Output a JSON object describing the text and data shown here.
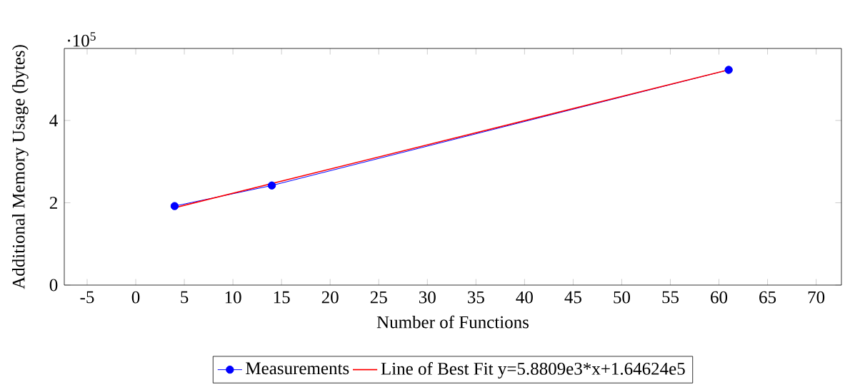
{
  "chart_data": {
    "type": "line",
    "xlabel": "Number of Functions",
    "ylabel": "Additional Memory Usage (bytes)",
    "annotations": [
      "·10$^{5}$"
    ],
    "xlim": [
      -7.35,
      72.6
    ],
    "ylim": [
      0,
      5.75
    ],
    "xticks": [
      -5,
      0,
      5,
      10,
      15,
      20,
      25,
      30,
      35,
      40,
      45,
      50,
      55,
      60,
      65,
      70
    ],
    "yticks": [
      0,
      2,
      4
    ],
    "legend": "bottom",
    "series": [
      {
        "name": "Measurements",
        "color": "#0000ff",
        "type": "line",
        "marker": "circle",
        "x": [
          4,
          14,
          61
        ],
        "values": [
          1.92,
          2.42,
          5.23
        ]
      },
      {
        "name": "Line of Best Fit y=5.8809e3*x+1.64624e5",
        "color": "#ff0000",
        "type": "line",
        "marker": "none",
        "x": [
          4,
          61
        ],
        "values": [
          1.88,
          5.23
        ]
      }
    ]
  }
}
